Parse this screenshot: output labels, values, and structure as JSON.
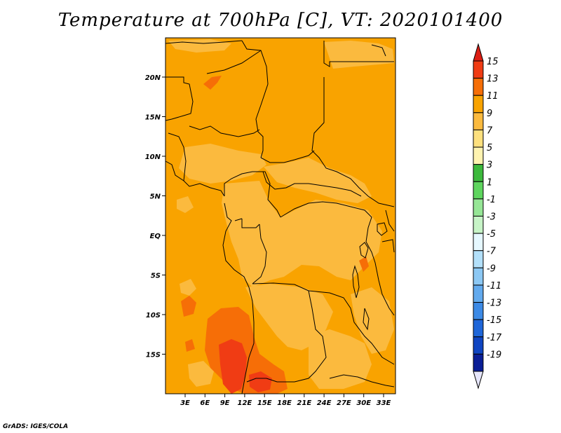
{
  "title": "Temperature at 700hPa [C], VT: 2020101400",
  "credit": "GrADS: IGES/COLA",
  "map": {
    "lat_labels": [
      "20N",
      "15N",
      "10N",
      "5N",
      "EQ",
      "5S",
      "10S",
      "15S"
    ],
    "lon_labels": [
      "3E",
      "6E",
      "9E",
      "12E",
      "15E",
      "18E",
      "21E",
      "24E",
      "27E",
      "30E",
      "33E"
    ],
    "background_color": "#f9a300"
  },
  "colorbar": {
    "labels": [
      "15",
      "13",
      "11",
      "9",
      "7",
      "5",
      "3",
      "1",
      "-1",
      "-3",
      "-5",
      "-7",
      "-9",
      "-11",
      "-13",
      "-15",
      "-17",
      "-19"
    ],
    "colors": [
      "#f03c14",
      "#f66e07",
      "#f9a300",
      "#fbba3e",
      "#fde07e",
      "#fef3b0",
      "#3cb93c",
      "#5ed55e",
      "#96e696",
      "#c7f4c7",
      "#e6f8ff",
      "#b3e0fa",
      "#8cc8f4",
      "#62aaee",
      "#3c8ae6",
      "#1e66d9",
      "#0f45c2",
      "#0a1e96",
      "#000060"
    ],
    "top_arrow_color": "#dc1e14",
    "bottom_arrow_color": "#e6e6fa"
  }
}
